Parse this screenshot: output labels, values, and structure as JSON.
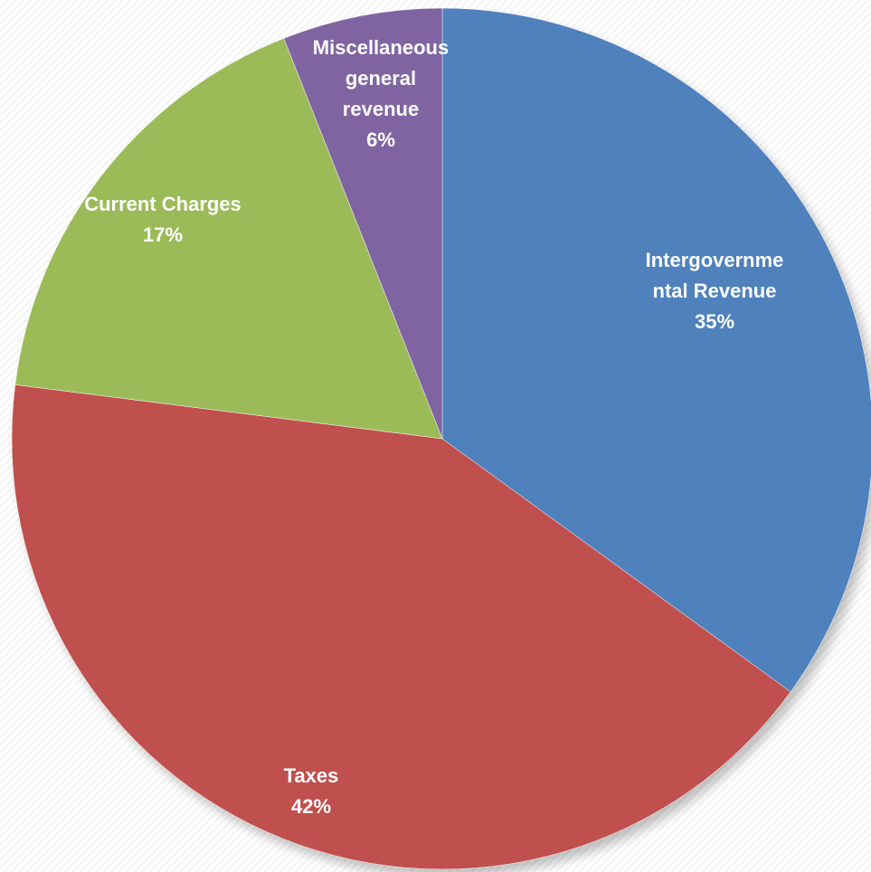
{
  "chart_data": {
    "type": "pie",
    "title": "",
    "slices": [
      {
        "label": "Intergovernmental Revenue",
        "label_lines": [
          "Intergovernme",
          "ntal Revenue"
        ],
        "value": 35,
        "percent_text": "35%",
        "color": "#4F81BD"
      },
      {
        "label": "Taxes",
        "label_lines": [
          "Taxes"
        ],
        "value": 42,
        "percent_text": "42%",
        "color": "#C0504D"
      },
      {
        "label": "Current Charges",
        "label_lines": [
          "Current Charges"
        ],
        "value": 17,
        "percent_text": "17%",
        "color": "#9BBB59"
      },
      {
        "label": "Miscellaneous general revenue",
        "label_lines": [
          "Miscellaneous",
          "general",
          "revenue"
        ],
        "value": 6,
        "percent_text": "6%",
        "color": "#8064A2"
      }
    ],
    "start_angle": "12 o'clock",
    "direction": "clockwise",
    "legend": "none",
    "data_labels": "inside, category name and percentage"
  }
}
